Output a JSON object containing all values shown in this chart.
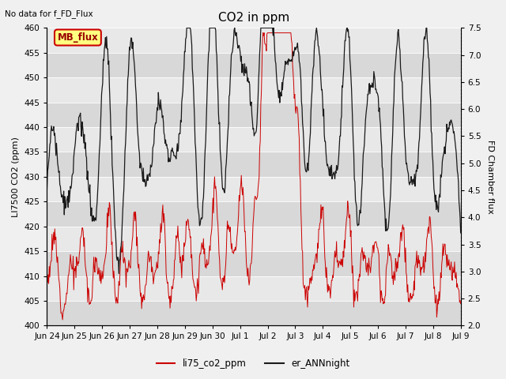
{
  "title": "CO2 in ppm",
  "ylabel_left": "LI7500 CO2 (ppm)",
  "ylabel_right": "FD Chamber flux",
  "ylim_left": [
    400,
    460
  ],
  "ylim_right": [
    2.0,
    7.5
  ],
  "yticks_left": [
    400,
    405,
    410,
    415,
    420,
    425,
    430,
    435,
    440,
    445,
    450,
    455,
    460
  ],
  "yticks_right": [
    2.0,
    2.5,
    3.0,
    3.5,
    4.0,
    4.5,
    5.0,
    5.5,
    6.0,
    6.5,
    7.0,
    7.5
  ],
  "xtick_labels": [
    "Jun 24",
    "Jun 25",
    "Jun 26",
    "Jun 27",
    "Jun 28",
    "Jun 29",
    "Jun 30",
    "Jul 1",
    "Jul 2",
    "Jul 3",
    "Jul 4",
    "Jul 5",
    "Jul 6",
    "Jul 7",
    "Jul 8",
    "Jul 9"
  ],
  "note_text": "No data for f_FD_Flux",
  "mb_flux_label": "MB_flux",
  "legend_red": "li75_co2_ppm",
  "legend_black": "er_ANNnight",
  "fig_bg": "#f0f0f0",
  "plot_bg": "#e8e8e8",
  "band_light": "#e8e8e8",
  "band_dark": "#d8d8d8",
  "red_color": "#cc0000",
  "black_color": "#1a1a1a",
  "mb_flux_bg": "#ffff80",
  "mb_flux_border": "#cc0000"
}
